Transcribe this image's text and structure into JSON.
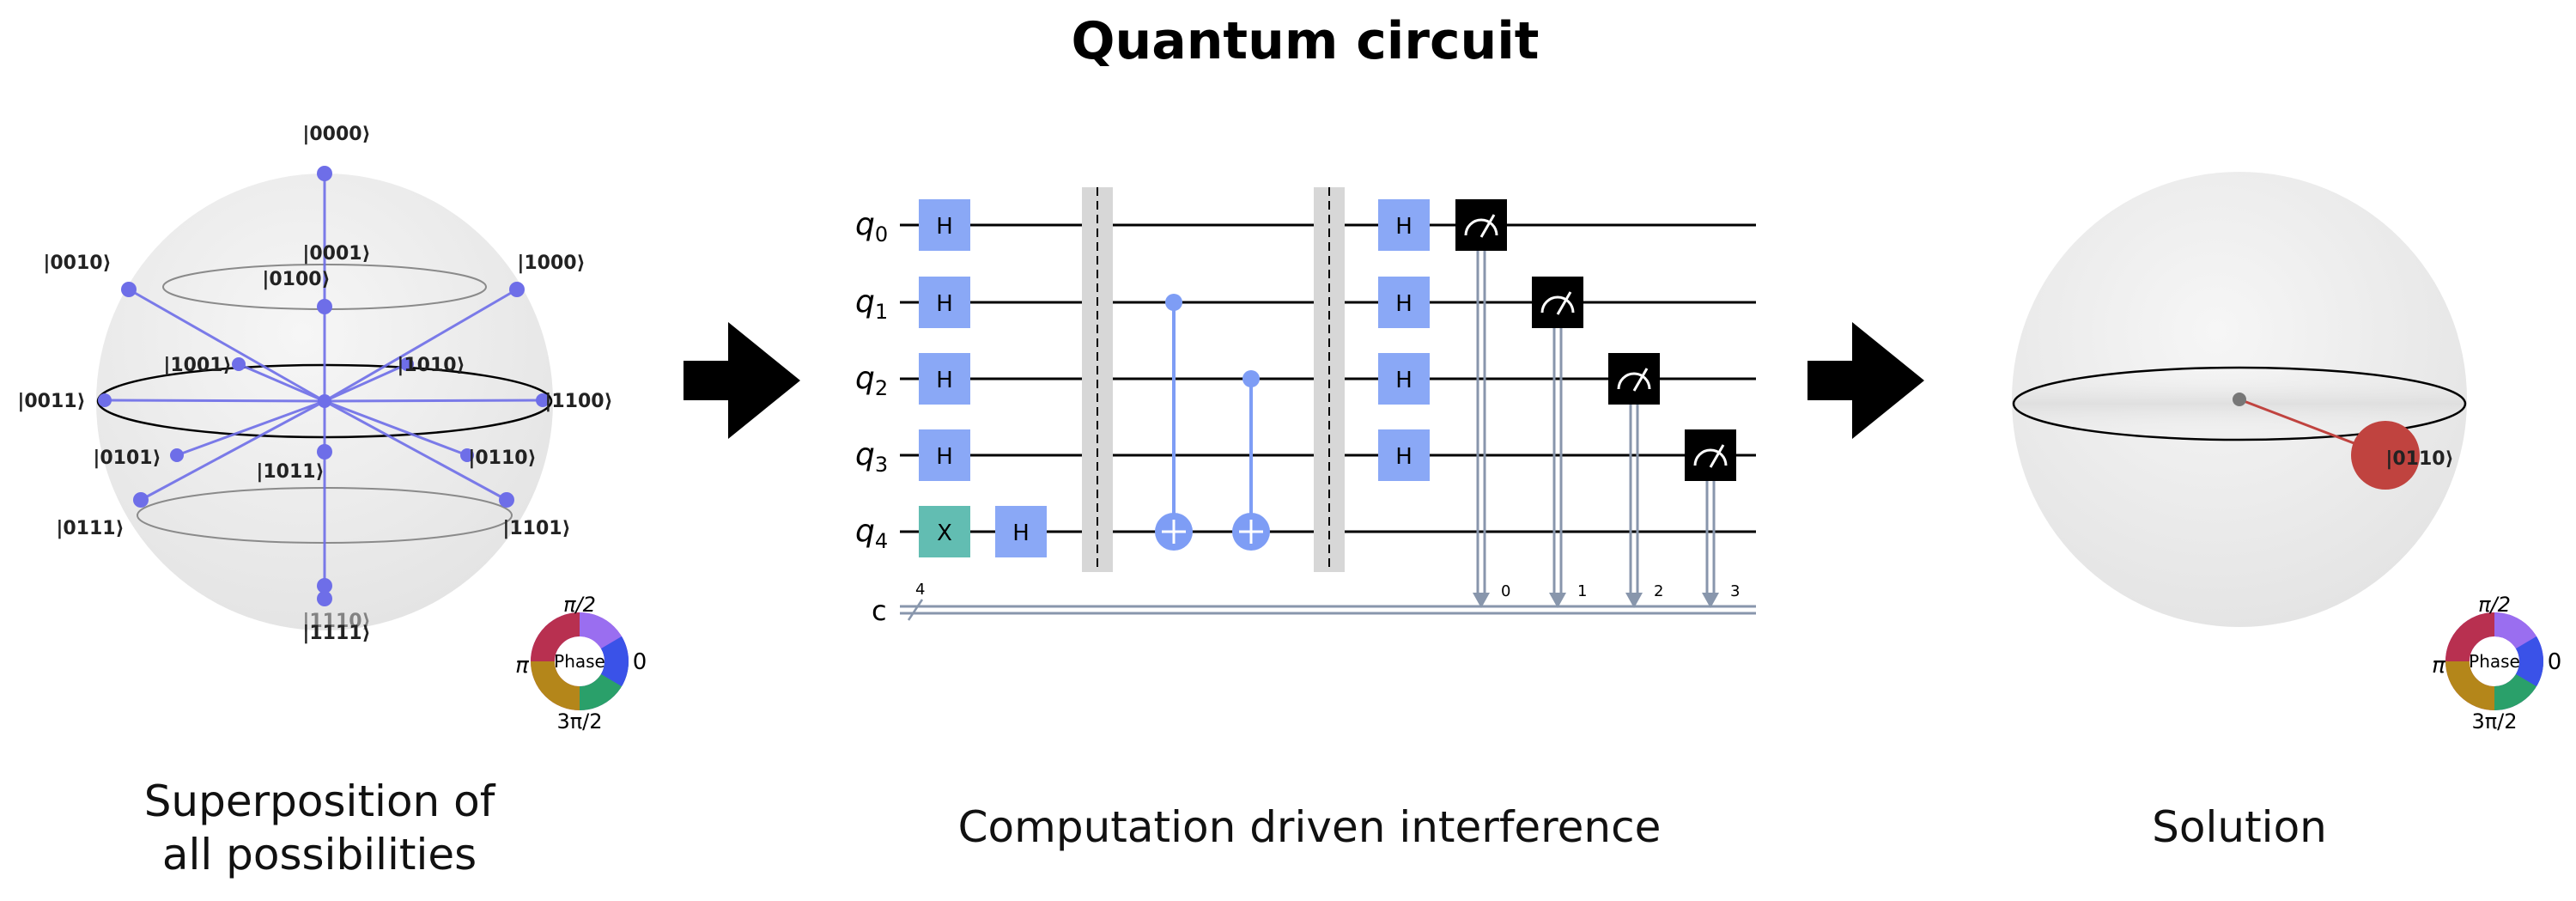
{
  "title": "Quantum circuit",
  "captions": {
    "left_line1": "Superposition of",
    "left_line2": "all possibilities",
    "middle": "Computation driven interference",
    "right": "Solution"
  },
  "left_sphere": {
    "state_labels": [
      "|0000⟩",
      "|0001⟩",
      "|0010⟩",
      "|0100⟩",
      "|1000⟩",
      "|1001⟩",
      "|1010⟩",
      "|0011⟩",
      "|1100⟩",
      "|0101⟩",
      "|0110⟩",
      "|1011⟩",
      "|0111⟩",
      "|1101⟩",
      "|1110⟩",
      "|1111⟩"
    ]
  },
  "phase_wheel": {
    "center": "Phase",
    "top": "π/2",
    "right": "0",
    "left": "π",
    "bottom": "3π/2"
  },
  "circuit": {
    "qubit_labels": [
      "q",
      "q",
      "q",
      "q",
      "q"
    ],
    "qubit_indices": [
      "0",
      "1",
      "2",
      "3",
      "4"
    ],
    "classical_label": "c",
    "classical_width": "4",
    "gates": {
      "h": "H",
      "x": "X"
    },
    "measure_bits": [
      "0",
      "1",
      "2",
      "3"
    ]
  },
  "right_sphere": {
    "state_label": "|0110⟩"
  },
  "colors": {
    "gate_h": "#8aa8f6",
    "gate_x": "#62bdb2",
    "measure": "#000000",
    "cnot": "#7e9df5",
    "classical_line": "#8896ac",
    "barrier": "#d7d7d7",
    "sphere": "#ebebeb",
    "state_vector": "#6e6ee8",
    "solution_dot": "#c0433f"
  }
}
